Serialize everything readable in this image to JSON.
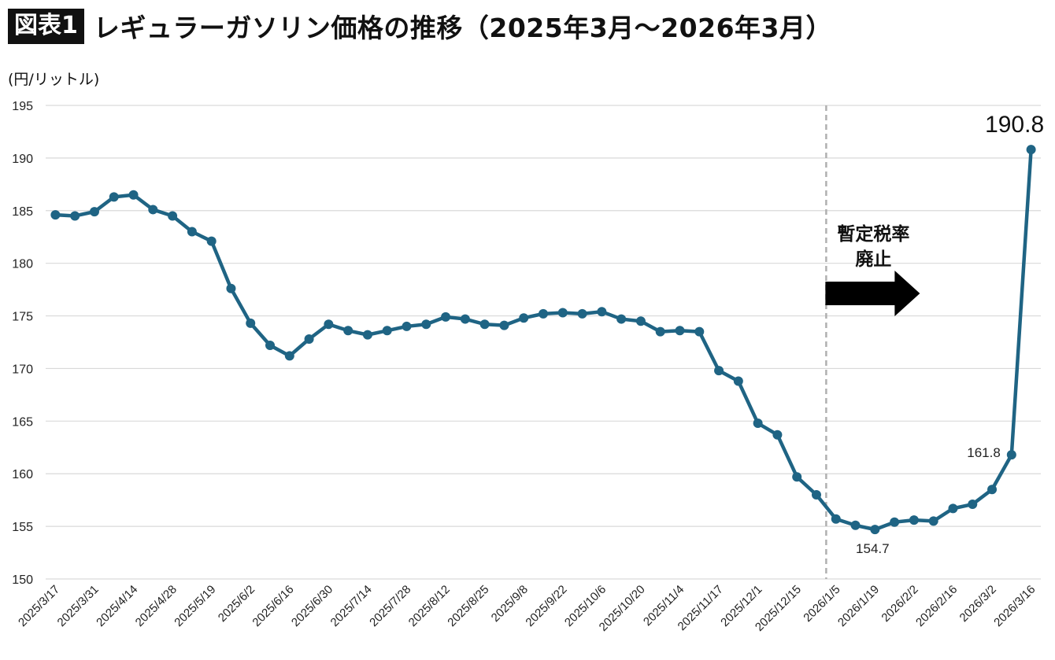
{
  "header": {
    "badge": "図表1",
    "title": "レギュラーガソリン価格の推移（2025年3月〜2026年3月）"
  },
  "unit_label": "(円/リットル)",
  "colors": {
    "line": "#1f6484",
    "grid": "#d9d9d9",
    "divider": "#b0b0b0",
    "arrow": "#000000"
  },
  "chart_data": {
    "type": "line",
    "title": "レギュラーガソリン価格の推移（2025年3月〜2026年3月）",
    "ylabel": "(円/リットル)",
    "xlabel": "",
    "ylim": [
      150,
      195
    ],
    "yticks": [
      150,
      155,
      160,
      165,
      170,
      175,
      180,
      185,
      190,
      195
    ],
    "grid": true,
    "x": [
      "2025/3/17",
      "2025/3/24",
      "2025/3/31",
      "2025/4/7",
      "2025/4/14",
      "2025/4/21",
      "2025/4/28",
      "2025/5/12",
      "2025/5/19",
      "2025/5/26",
      "2025/6/2",
      "2025/6/9",
      "2025/6/16",
      "2025/6/23",
      "2025/6/30",
      "2025/7/7",
      "2025/7/14",
      "2025/7/22",
      "2025/7/28",
      "2025/8/4",
      "2025/8/12",
      "2025/8/18",
      "2025/8/25",
      "2025/9/1",
      "2025/9/8",
      "2025/9/16",
      "2025/9/22",
      "2025/9/29",
      "2025/10/6",
      "2025/10/14",
      "2025/10/20",
      "2025/10/27",
      "2025/11/4",
      "2025/11/10",
      "2025/11/17",
      "2025/11/25",
      "2025/12/1",
      "2025/12/8",
      "2025/12/15",
      "2025/12/22",
      "2026/1/5",
      "2026/1/13",
      "2026/1/19",
      "2026/1/26",
      "2026/2/2",
      "2026/2/9",
      "2026/2/16",
      "2026/2/24",
      "2026/3/2",
      "2026/3/9",
      "2026/3/16"
    ],
    "xticklabels": [
      "2025/3/17",
      "2025/3/31",
      "2025/4/14",
      "2025/4/28",
      "2025/5/19",
      "2025/6/2",
      "2025/6/16",
      "2025/6/30",
      "2025/7/14",
      "2025/7/28",
      "2025/8/12",
      "2025/8/25",
      "2025/9/8",
      "2025/9/22",
      "2025/10/6",
      "2025/10/20",
      "2025/11/4",
      "2025/11/17",
      "2025/12/1",
      "2025/12/15",
      "2026/1/5",
      "2026/1/19",
      "2026/2/2",
      "2026/2/16",
      "2026/3/2",
      "2026/3/16"
    ],
    "series": [
      {
        "values": [
          184.6,
          184.5,
          184.9,
          186.3,
          186.5,
          185.1,
          184.5,
          183.0,
          182.1,
          177.6,
          174.3,
          172.2,
          171.2,
          172.8,
          174.2,
          173.6,
          173.2,
          173.6,
          174.0,
          174.2,
          174.9,
          174.7,
          174.2,
          174.1,
          174.8,
          175.2,
          175.3,
          175.2,
          175.4,
          174.7,
          174.5,
          173.5,
          173.6,
          173.5,
          169.8,
          168.8,
          164.8,
          163.7,
          159.7,
          158.0,
          155.7,
          155.1,
          154.7,
          155.4,
          155.6,
          155.5,
          156.7,
          157.1,
          158.5,
          161.8,
          190.8
        ]
      }
    ],
    "data_labels": [
      {
        "index": 42,
        "text": "154.7"
      },
      {
        "index": 49,
        "text": "161.8"
      },
      {
        "index": 50,
        "text": "190.8"
      }
    ],
    "annotation": {
      "line1": "暫定税率",
      "line2": "廃止",
      "at_index": 39.5
    }
  }
}
